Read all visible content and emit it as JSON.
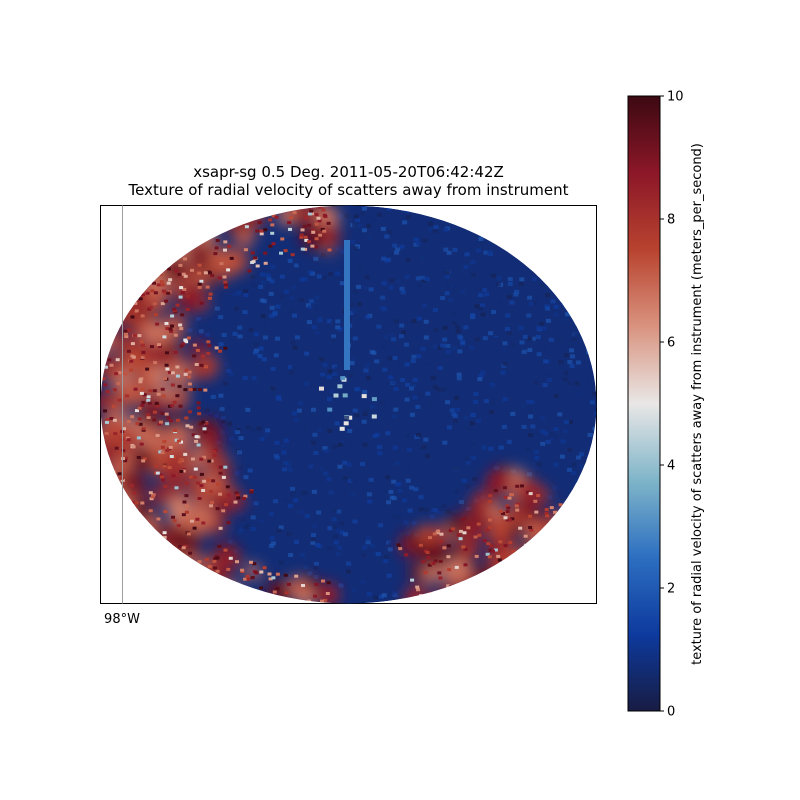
{
  "chart_data": {
    "type": "heatmap",
    "title": "xsapr-sg 0.5 Deg. 2011-05-20T06:42:42Z",
    "subtitle": "Texture of radial velocity of scatters away from instrument",
    "longitude_label": "98°W",
    "colorbar": {
      "label": "texture of radial velocity of scatters away from instrument (meters_per_second)",
      "range": [
        0,
        10
      ],
      "ticks": [
        "0",
        "2",
        "4",
        "6",
        "8",
        "10"
      ],
      "colormap": "balance",
      "colors": [
        "#181c43",
        "#0d3a9e",
        "#2d6fc1",
        "#7fb5c9",
        "#e9e7e6",
        "#d9937f",
        "#b8432f",
        "#8c1728",
        "#3c0912"
      ]
    },
    "field_description": {
      "high_texture_regions": [
        "west",
        "north",
        "southeast"
      ],
      "low_texture_regions": [
        "center",
        "east",
        "south"
      ],
      "high_value_approx": 8,
      "low_value_approx": 0.7
    },
    "grid": "off"
  }
}
